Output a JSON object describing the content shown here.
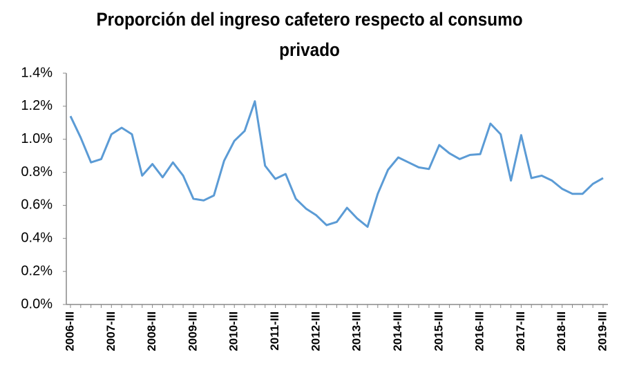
{
  "chart_data": {
    "type": "line",
    "title": "Proporción del ingreso cafetero respecto al consumo privado",
    "categories": [
      "2006-III",
      null,
      null,
      null,
      "2007-III",
      null,
      null,
      null,
      "2008-III",
      null,
      null,
      null,
      "2009-III",
      null,
      null,
      null,
      "2010-III",
      null,
      null,
      null,
      "2011-III",
      null,
      null,
      null,
      "2012-III",
      null,
      null,
      null,
      "2013-III",
      null,
      null,
      null,
      "2014-III",
      null,
      null,
      null,
      "2015-III",
      null,
      null,
      null,
      "2016-III",
      null,
      null,
      null,
      "2017-III",
      null,
      null,
      null,
      "2018-III",
      null,
      null,
      null,
      "2019-III"
    ],
    "values": [
      1.14,
      1.01,
      0.86,
      0.88,
      1.03,
      1.07,
      1.03,
      0.78,
      0.85,
      0.77,
      0.86,
      0.78,
      0.64,
      0.63,
      0.66,
      0.87,
      0.99,
      1.05,
      1.23,
      0.84,
      0.76,
      0.79,
      0.64,
      0.58,
      0.54,
      0.48,
      0.5,
      0.585,
      0.52,
      0.47,
      0.67,
      0.815,
      0.89,
      0.86,
      0.83,
      0.82,
      0.965,
      0.915,
      0.88,
      0.905,
      0.91,
      1.095,
      1.03,
      0.75,
      1.025,
      0.765,
      0.78,
      0.75,
      0.7,
      0.67,
      0.67,
      0.73,
      0.765
    ],
    "color": "#5b9bd5",
    "ylim": [
      0,
      1.4
    ],
    "yticks": [
      {
        "value": 0,
        "label": "0.0%"
      },
      {
        "value": 0.2,
        "label": "0.2%"
      },
      {
        "value": 0.4,
        "label": "0.4%"
      },
      {
        "value": 0.6,
        "label": "0.6%"
      },
      {
        "value": 0.8,
        "label": "0.8%"
      },
      {
        "value": 1.0,
        "label": "1.0%"
      },
      {
        "value": 1.2,
        "label": "1.2%"
      },
      {
        "value": 1.4,
        "label": "1.4%"
      }
    ],
    "grid": false
  }
}
